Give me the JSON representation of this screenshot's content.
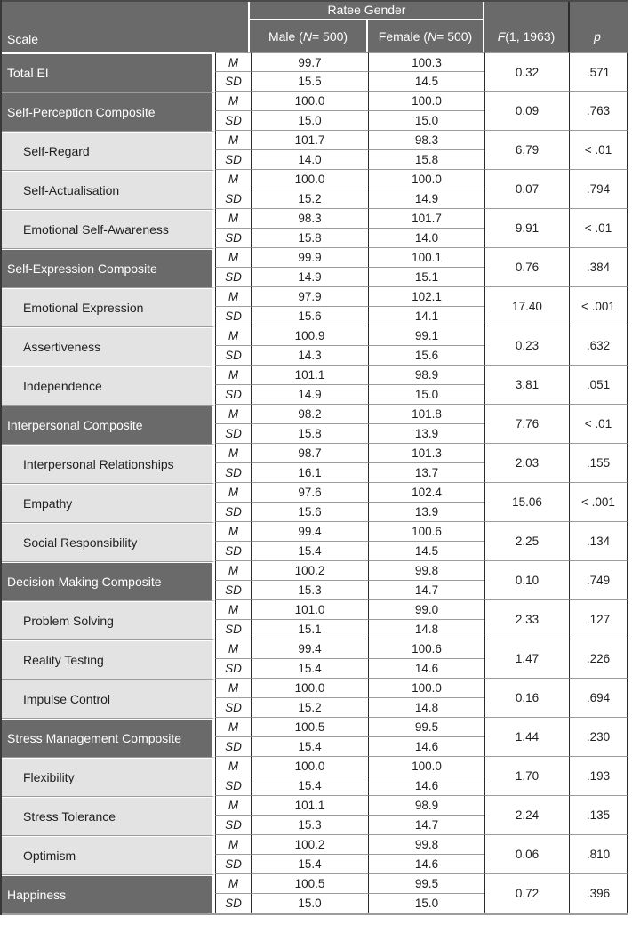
{
  "header": {
    "scale_label": "Scale",
    "ratee_gender_label": "Ratee Gender",
    "male_col": {
      "pre": "Male (",
      "it": "N",
      "post": " = 500)"
    },
    "female_col": {
      "pre": "Female (",
      "it": "N",
      "post": " = 500)"
    },
    "f_col": {
      "it": "F",
      "post": " (1, 1963)"
    },
    "p_col": {
      "it": "p"
    }
  },
  "row_labels": {
    "mean": "M",
    "sd": "SD"
  },
  "colors": {
    "header_bg": "#6a6a6a",
    "composite_row_bg": "#6a6a6a",
    "subscale_row_bg": "#e3e3e3",
    "header_text": "#ffffff",
    "body_text": "#1f1f1f",
    "grid_horizontal": "#9c9c9c",
    "grid_vertical": "#2a2a2a"
  },
  "rows": [
    {
      "scale": "Total EI",
      "level": 1,
      "m_male": "99.7",
      "m_female": "100.3",
      "sd_male": "15.5",
      "sd_female": "14.5",
      "f": "0.32",
      "p": ".571"
    },
    {
      "scale": "Self-Perception Composite",
      "level": 1,
      "m_male": "100.0",
      "m_female": "100.0",
      "sd_male": "15.0",
      "sd_female": "15.0",
      "f": "0.09",
      "p": ".763"
    },
    {
      "scale": "Self-Regard",
      "level": 2,
      "m_male": "101.7",
      "m_female": "98.3",
      "sd_male": "14.0",
      "sd_female": "15.8",
      "f": "6.79",
      "p": "< .01"
    },
    {
      "scale": "Self-Actualisation",
      "level": 2,
      "m_male": "100.0",
      "m_female": "100.0",
      "sd_male": "15.2",
      "sd_female": "14.9",
      "f": "0.07",
      "p": ".794"
    },
    {
      "scale": "Emotional Self-Awareness",
      "level": 2,
      "m_male": "98.3",
      "m_female": "101.7",
      "sd_male": "15.8",
      "sd_female": "14.0",
      "f": "9.91",
      "p": "< .01"
    },
    {
      "scale": "Self-Expression Composite",
      "level": 1,
      "m_male": "99.9",
      "m_female": "100.1",
      "sd_male": "14.9",
      "sd_female": "15.1",
      "f": "0.76",
      "p": ".384"
    },
    {
      "scale": "Emotional Expression",
      "level": 2,
      "m_male": "97.9",
      "m_female": "102.1",
      "sd_male": "15.6",
      "sd_female": "14.1",
      "f": "17.40",
      "p": "< .001"
    },
    {
      "scale": "Assertiveness",
      "level": 2,
      "m_male": "100.9",
      "m_female": "99.1",
      "sd_male": "14.3",
      "sd_female": "15.6",
      "f": "0.23",
      "p": ".632"
    },
    {
      "scale": "Independence",
      "level": 2,
      "m_male": "101.1",
      "m_female": "98.9",
      "sd_male": "14.9",
      "sd_female": "15.0",
      "f": "3.81",
      "p": ".051"
    },
    {
      "scale": "Interpersonal Composite",
      "level": 1,
      "m_male": "98.2",
      "m_female": "101.8",
      "sd_male": "15.8",
      "sd_female": "13.9",
      "f": "7.76",
      "p": "< .01"
    },
    {
      "scale": "Interpersonal Relationships",
      "level": 2,
      "m_male": "98.7",
      "m_female": "101.3",
      "sd_male": "16.1",
      "sd_female": "13.7",
      "f": "2.03",
      "p": ".155"
    },
    {
      "scale": "Empathy",
      "level": 2,
      "m_male": "97.6",
      "m_female": "102.4",
      "sd_male": "15.6",
      "sd_female": "13.9",
      "f": "15.06",
      "p": "< .001"
    },
    {
      "scale": "Social Responsibility",
      "level": 2,
      "m_male": "99.4",
      "m_female": "100.6",
      "sd_male": "15.4",
      "sd_female": "14.5",
      "f": "2.25",
      "p": ".134"
    },
    {
      "scale": "Decision Making Composite",
      "level": 1,
      "m_male": "100.2",
      "m_female": "99.8",
      "sd_male": "15.3",
      "sd_female": "14.7",
      "f": "0.10",
      "p": ".749"
    },
    {
      "scale": "Problem Solving",
      "level": 2,
      "m_male": "101.0",
      "m_female": "99.0",
      "sd_male": "15.1",
      "sd_female": "14.8",
      "f": "2.33",
      "p": ".127"
    },
    {
      "scale": "Reality Testing",
      "level": 2,
      "m_male": "99.4",
      "m_female": "100.6",
      "sd_male": "15.4",
      "sd_female": "14.6",
      "f": "1.47",
      "p": ".226"
    },
    {
      "scale": "Impulse Control",
      "level": 2,
      "m_male": "100.0",
      "m_female": "100.0",
      "sd_male": "15.2",
      "sd_female": "14.8",
      "f": "0.16",
      "p": ".694"
    },
    {
      "scale": "Stress Management Composite",
      "level": 1,
      "m_male": "100.5",
      "m_female": "99.5",
      "sd_male": "15.4",
      "sd_female": "14.6",
      "f": "1.44",
      "p": ".230"
    },
    {
      "scale": "Flexibility",
      "level": 2,
      "m_male": "100.0",
      "m_female": "100.0",
      "sd_male": "15.4",
      "sd_female": "14.6",
      "f": "1.70",
      "p": ".193"
    },
    {
      "scale": "Stress Tolerance",
      "level": 2,
      "m_male": "101.1",
      "m_female": "98.9",
      "sd_male": "15.3",
      "sd_female": "14.7",
      "f": "2.24",
      "p": ".135"
    },
    {
      "scale": "Optimism",
      "level": 2,
      "m_male": "100.2",
      "m_female": "99.8",
      "sd_male": "15.4",
      "sd_female": "14.6",
      "f": "0.06",
      "p": ".810"
    },
    {
      "scale": "Happiness",
      "level": 1,
      "m_male": "100.5",
      "m_female": "99.5",
      "sd_male": "15.0",
      "sd_female": "15.0",
      "f": "0.72",
      "p": ".396"
    }
  ]
}
